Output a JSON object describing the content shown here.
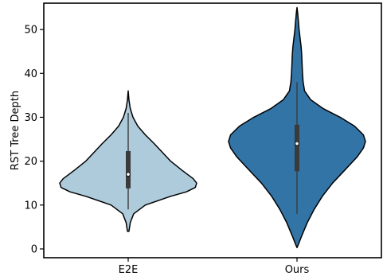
{
  "chart_data": {
    "type": "violin",
    "title": "",
    "xlabel": "",
    "ylabel": "RST Tree Depth",
    "ylim": [
      -2,
      56
    ],
    "grid": false,
    "yticks": [
      0,
      10,
      20,
      30,
      40,
      50
    ],
    "categories": [
      "E2E",
      "Ours"
    ],
    "series": [
      {
        "category": "E2E",
        "color": "#aecbdc",
        "min": 4,
        "max": 36,
        "whisker_low": 9,
        "whisker_high": 31,
        "q1": 13.8,
        "median": 17,
        "q3": 22.3,
        "density_profile": [
          [
            4,
            0.01
          ],
          [
            6,
            0.03
          ],
          [
            8,
            0.08
          ],
          [
            10,
            0.25
          ],
          [
            12,
            0.62
          ],
          [
            13,
            0.85
          ],
          [
            14,
            0.98
          ],
          [
            15,
            1.0
          ],
          [
            16,
            0.95
          ],
          [
            18,
            0.78
          ],
          [
            20,
            0.62
          ],
          [
            22,
            0.5
          ],
          [
            24,
            0.38
          ],
          [
            26,
            0.25
          ],
          [
            28,
            0.14
          ],
          [
            30,
            0.07
          ],
          [
            32,
            0.03
          ],
          [
            34,
            0.01
          ],
          [
            35,
            0.006
          ],
          [
            36,
            0.0
          ]
        ]
      },
      {
        "category": "Ours",
        "color": "#3274a6",
        "min": 0.3,
        "max": 55,
        "whisker_low": 8,
        "whisker_high": 38,
        "q1": 17.7,
        "median": 24,
        "q3": 28.3,
        "density_profile": [
          [
            0.3,
            0.0
          ],
          [
            1,
            0.02
          ],
          [
            3,
            0.07
          ],
          [
            6,
            0.15
          ],
          [
            9,
            0.25
          ],
          [
            12,
            0.37
          ],
          [
            15,
            0.52
          ],
          [
            18,
            0.7
          ],
          [
            21,
            0.88
          ],
          [
            23,
            0.97
          ],
          [
            24.5,
            1.0
          ],
          [
            26,
            0.97
          ],
          [
            28,
            0.84
          ],
          [
            30,
            0.63
          ],
          [
            32,
            0.38
          ],
          [
            34,
            0.2
          ],
          [
            36,
            0.11
          ],
          [
            38,
            0.09
          ],
          [
            40,
            0.08
          ],
          [
            42,
            0.075
          ],
          [
            44,
            0.07
          ],
          [
            46,
            0.06
          ],
          [
            48,
            0.045
          ],
          [
            50,
            0.03
          ],
          [
            52,
            0.02
          ],
          [
            54,
            0.008
          ],
          [
            55,
            0.0
          ]
        ]
      }
    ]
  }
}
